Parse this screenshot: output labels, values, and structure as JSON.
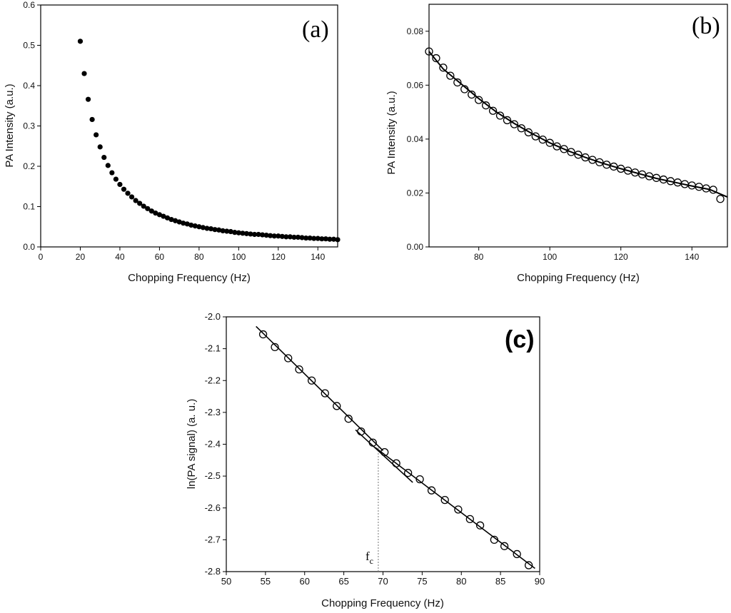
{
  "chart_data": [
    {
      "id": "a",
      "type": "scatter",
      "title": "(a)",
      "xlabel": "Chopping Frequency (Hz)",
      "ylabel": "PA Intensity (a.u.)",
      "xlim": [
        0,
        150
      ],
      "ylim": [
        0,
        0.6
      ],
      "xticks": [
        0,
        20,
        40,
        60,
        80,
        100,
        120,
        140
      ],
      "yticks": [
        0.0,
        0.1,
        0.2,
        0.3,
        0.4,
        0.5,
        0.6
      ],
      "xtick_labels": [
        "0",
        "20",
        "40",
        "60",
        "80",
        "100",
        "120",
        "140"
      ],
      "ytick_labels": [
        "0.0",
        "0.1",
        "0.2",
        "0.3",
        "0.4",
        "0.5",
        "0.6"
      ],
      "marker": "filled-circle",
      "series": [
        {
          "x": [
            20,
            22,
            24,
            26,
            28,
            30,
            32,
            34,
            36,
            38,
            40,
            42,
            44,
            46,
            48,
            50,
            52,
            54,
            56,
            58,
            60,
            62,
            64,
            66,
            68,
            70,
            72,
            74,
            76,
            78,
            80,
            82,
            84,
            86,
            88,
            90,
            92,
            94,
            96,
            98,
            100,
            102,
            104,
            106,
            108,
            110,
            112,
            114,
            116,
            118,
            120,
            122,
            124,
            126,
            128,
            130,
            132,
            134,
            136,
            138,
            140,
            142,
            144,
            146,
            148,
            150
          ],
          "y": [
            0.51,
            0.43,
            0.366,
            0.316,
            0.278,
            0.248,
            0.222,
            0.202,
            0.184,
            0.168,
            0.155,
            0.143,
            0.133,
            0.124,
            0.115,
            0.108,
            0.101,
            0.095,
            0.089,
            0.084,
            0.08,
            0.076,
            0.072,
            0.068,
            0.065,
            0.062,
            0.059,
            0.057,
            0.054,
            0.052,
            0.05,
            0.048,
            0.046,
            0.045,
            0.043,
            0.042,
            0.04,
            0.039,
            0.038,
            0.036,
            0.035,
            0.034,
            0.033,
            0.032,
            0.031,
            0.031,
            0.03,
            0.029,
            0.028,
            0.027,
            0.027,
            0.026,
            0.025,
            0.025,
            0.024,
            0.024,
            0.023,
            0.022,
            0.022,
            0.021,
            0.021,
            0.02,
            0.02,
            0.019,
            0.019,
            0.018
          ]
        }
      ]
    },
    {
      "id": "b",
      "type": "scatter",
      "title": "(b)",
      "xlabel": "Chopping Frequency (Hz)",
      "ylabel": "PA Intensity (a.u.)",
      "xlim": [
        66,
        150
      ],
      "ylim": [
        0,
        0.09
      ],
      "xticks": [
        80,
        100,
        120,
        140
      ],
      "yticks": [
        0.0,
        0.02,
        0.04,
        0.06,
        0.08
      ],
      "xtick_labels": [
        "80",
        "100",
        "120",
        "140"
      ],
      "ytick_labels": [
        "0.00",
        "0.02",
        "0.04",
        "0.06",
        "0.08"
      ],
      "marker": "open-circle",
      "series": [
        {
          "x": [
            66,
            68,
            70,
            72,
            74,
            76,
            78,
            80,
            82,
            84,
            86,
            88,
            90,
            92,
            94,
            96,
            98,
            100,
            102,
            104,
            106,
            108,
            110,
            112,
            114,
            116,
            118,
            120,
            122,
            124,
            126,
            128,
            130,
            132,
            134,
            136,
            138,
            140,
            142,
            144,
            146,
            148
          ],
          "y": [
            0.0725,
            0.07,
            0.0665,
            0.0635,
            0.061,
            0.0585,
            0.0565,
            0.0545,
            0.0525,
            0.0505,
            0.0487,
            0.047,
            0.0455,
            0.044,
            0.0425,
            0.041,
            0.0398,
            0.0386,
            0.0373,
            0.0363,
            0.0352,
            0.0342,
            0.0332,
            0.0323,
            0.0314,
            0.0305,
            0.0298,
            0.029,
            0.0283,
            0.0276,
            0.0269,
            0.0262,
            0.0256,
            0.025,
            0.0244,
            0.0239,
            0.0233,
            0.0228,
            0.0223,
            0.0217,
            0.0212,
            0.0178
          ]
        }
      ],
      "fit_line": {
        "x": [
          66,
          70,
          75,
          80,
          85,
          90,
          95,
          100,
          105,
          110,
          115,
          120,
          125,
          130,
          135,
          140,
          145,
          150
        ],
        "y": [
          0.0725,
          0.066,
          0.0605,
          0.055,
          0.05,
          0.0458,
          0.042,
          0.0386,
          0.0357,
          0.0332,
          0.031,
          0.029,
          0.0272,
          0.0254,
          0.024,
          0.0226,
          0.0213,
          0.0185
        ]
      }
    },
    {
      "id": "c",
      "type": "scatter",
      "title": "(c)",
      "xlabel": "Chopping Frequency (Hz)",
      "ylabel": "ln(PA signal) (a. u.)",
      "xlim": [
        50,
        90
      ],
      "ylim": [
        -2.8,
        -2.0
      ],
      "xticks": [
        50,
        55,
        60,
        65,
        70,
        75,
        80,
        85,
        90
      ],
      "yticks": [
        -2.8,
        -2.7,
        -2.6,
        -2.5,
        -2.4,
        -2.3,
        -2.2,
        -2.1,
        -2.0
      ],
      "xtick_labels": [
        "50",
        "55",
        "60",
        "65",
        "70",
        "75",
        "80",
        "85",
        "90"
      ],
      "ytick_labels": [
        "-2.8",
        "-2.7",
        "-2.6",
        "-2.5",
        "-2.4",
        "-2.3",
        "-2.2",
        "-2.1",
        "-2.0"
      ],
      "marker": "open-circle",
      "series": [
        {
          "x": [
            54.7,
            56.2,
            57.9,
            59.3,
            60.9,
            62.6,
            64.1,
            65.6,
            67.2,
            68.7,
            70.2,
            71.7,
            73.2,
            74.7,
            76.2,
            77.9,
            79.6,
            81.1,
            82.4,
            84.2,
            85.5,
            87.1,
            88.6
          ],
          "y": [
            -2.055,
            -2.095,
            -2.13,
            -2.165,
            -2.2,
            -2.24,
            -2.28,
            -2.32,
            -2.36,
            -2.395,
            -2.425,
            -2.46,
            -2.49,
            -2.51,
            -2.545,
            -2.575,
            -2.605,
            -2.635,
            -2.655,
            -2.7,
            -2.72,
            -2.745,
            -2.78
          ]
        }
      ],
      "fit_lines": [
        {
          "x": [
            53.8,
            70.0
          ],
          "y": [
            -2.03,
            -2.42
          ]
        },
        {
          "x": [
            66.5,
            73.8
          ],
          "y": [
            -2.355,
            -2.52
          ]
        },
        {
          "x": [
            69.0,
            89.4
          ],
          "y": [
            -2.41,
            -2.79
          ]
        }
      ],
      "annotation": {
        "label": "f",
        "subscript": "c",
        "x": 69.4
      }
    }
  ]
}
